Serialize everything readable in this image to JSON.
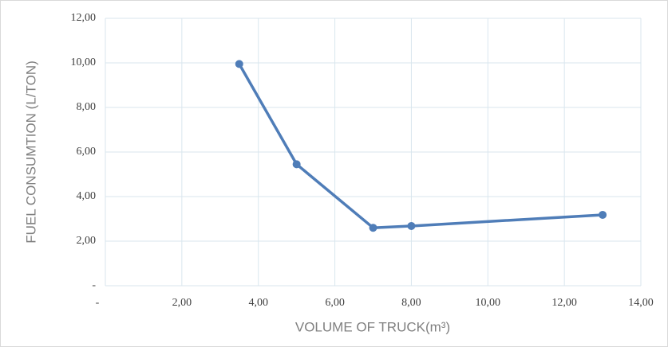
{
  "chart_data": {
    "type": "line",
    "x_label": "VOLUME OF TRUCK(m³)",
    "y_label": "FUEL CONSUMTION (L/TON)",
    "x": [
      3.5,
      5,
      7,
      8,
      13
    ],
    "series": [
      {
        "name": null,
        "color": "#4f7db8",
        "values": [
          9.95,
          5.45,
          2.6,
          2.68,
          3.18
        ]
      }
    ],
    "xlim": [
      0,
      14
    ],
    "xticks": [
      {
        "value": 0,
        "label": "-"
      },
      {
        "value": 2,
        "label": "2,00"
      },
      {
        "value": 4,
        "label": "4,00"
      },
      {
        "value": 6,
        "label": "6,00"
      },
      {
        "value": 8,
        "label": "8,00"
      },
      {
        "value": 10,
        "label": "10,00"
      },
      {
        "value": 12,
        "label": "12,00"
      },
      {
        "value": 14,
        "label": "14,00"
      }
    ],
    "ylim": [
      0,
      12
    ],
    "yticks": [
      {
        "value": 0,
        "label": "-"
      },
      {
        "value": 2,
        "label": "2,00"
      },
      {
        "value": 4,
        "label": "4,00"
      },
      {
        "value": 6,
        "label": "6,00"
      },
      {
        "value": 8,
        "label": "8,00"
      },
      {
        "value": 10,
        "label": "10,00"
      },
      {
        "value": 12,
        "label": "12,00"
      }
    ],
    "grid": true
  }
}
